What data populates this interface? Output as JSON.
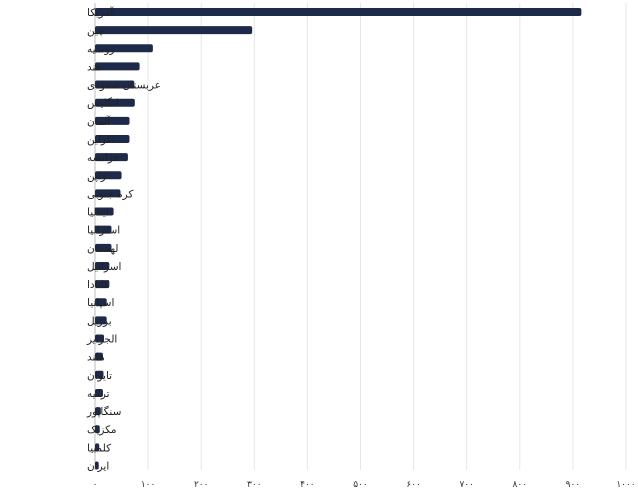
{
  "chart_data": {
    "type": "bar",
    "orientation": "horizontal",
    "categories": [
      "آمریکا",
      "چین",
      "روسیه",
      "هند",
      "عربستان سعودی",
      "انگلیس",
      "آلمان",
      "اکراین",
      "فرانسه",
      "ژاپن",
      "کره جنوبی",
      "ایتالیا",
      "استرالیا",
      "لهستان",
      "اسرائیل",
      "کانادا",
      "اسپانیا",
      "برزیل",
      "الجزایر",
      "هلند",
      "تایوان",
      "ترکیه",
      "سنگاپور",
      "مکزیک",
      "کلمبیا",
      "ایران"
    ],
    "values": [
      916,
      296,
      109,
      84,
      74,
      75,
      65,
      65,
      62,
      50,
      48,
      35,
      31,
      31,
      27,
      27,
      22,
      22,
      17,
      15,
      16,
      15,
      11,
      9,
      8,
      7
    ],
    "xticks": [
      "۰",
      "۱۰۰",
      "۲۰۰",
      "۳۰۰",
      "۴۰۰",
      "۵۰۰",
      "۶۰۰",
      "۷۰۰",
      "۸۰۰",
      "۹۰۰",
      "۱۰۰۰"
    ],
    "xlim": [
      0,
      1000
    ],
    "grid": true,
    "bar_color": "#1e2a4a",
    "grid_color": "#e6e6e6",
    "title": "",
    "xlabel": "",
    "ylabel": ""
  }
}
